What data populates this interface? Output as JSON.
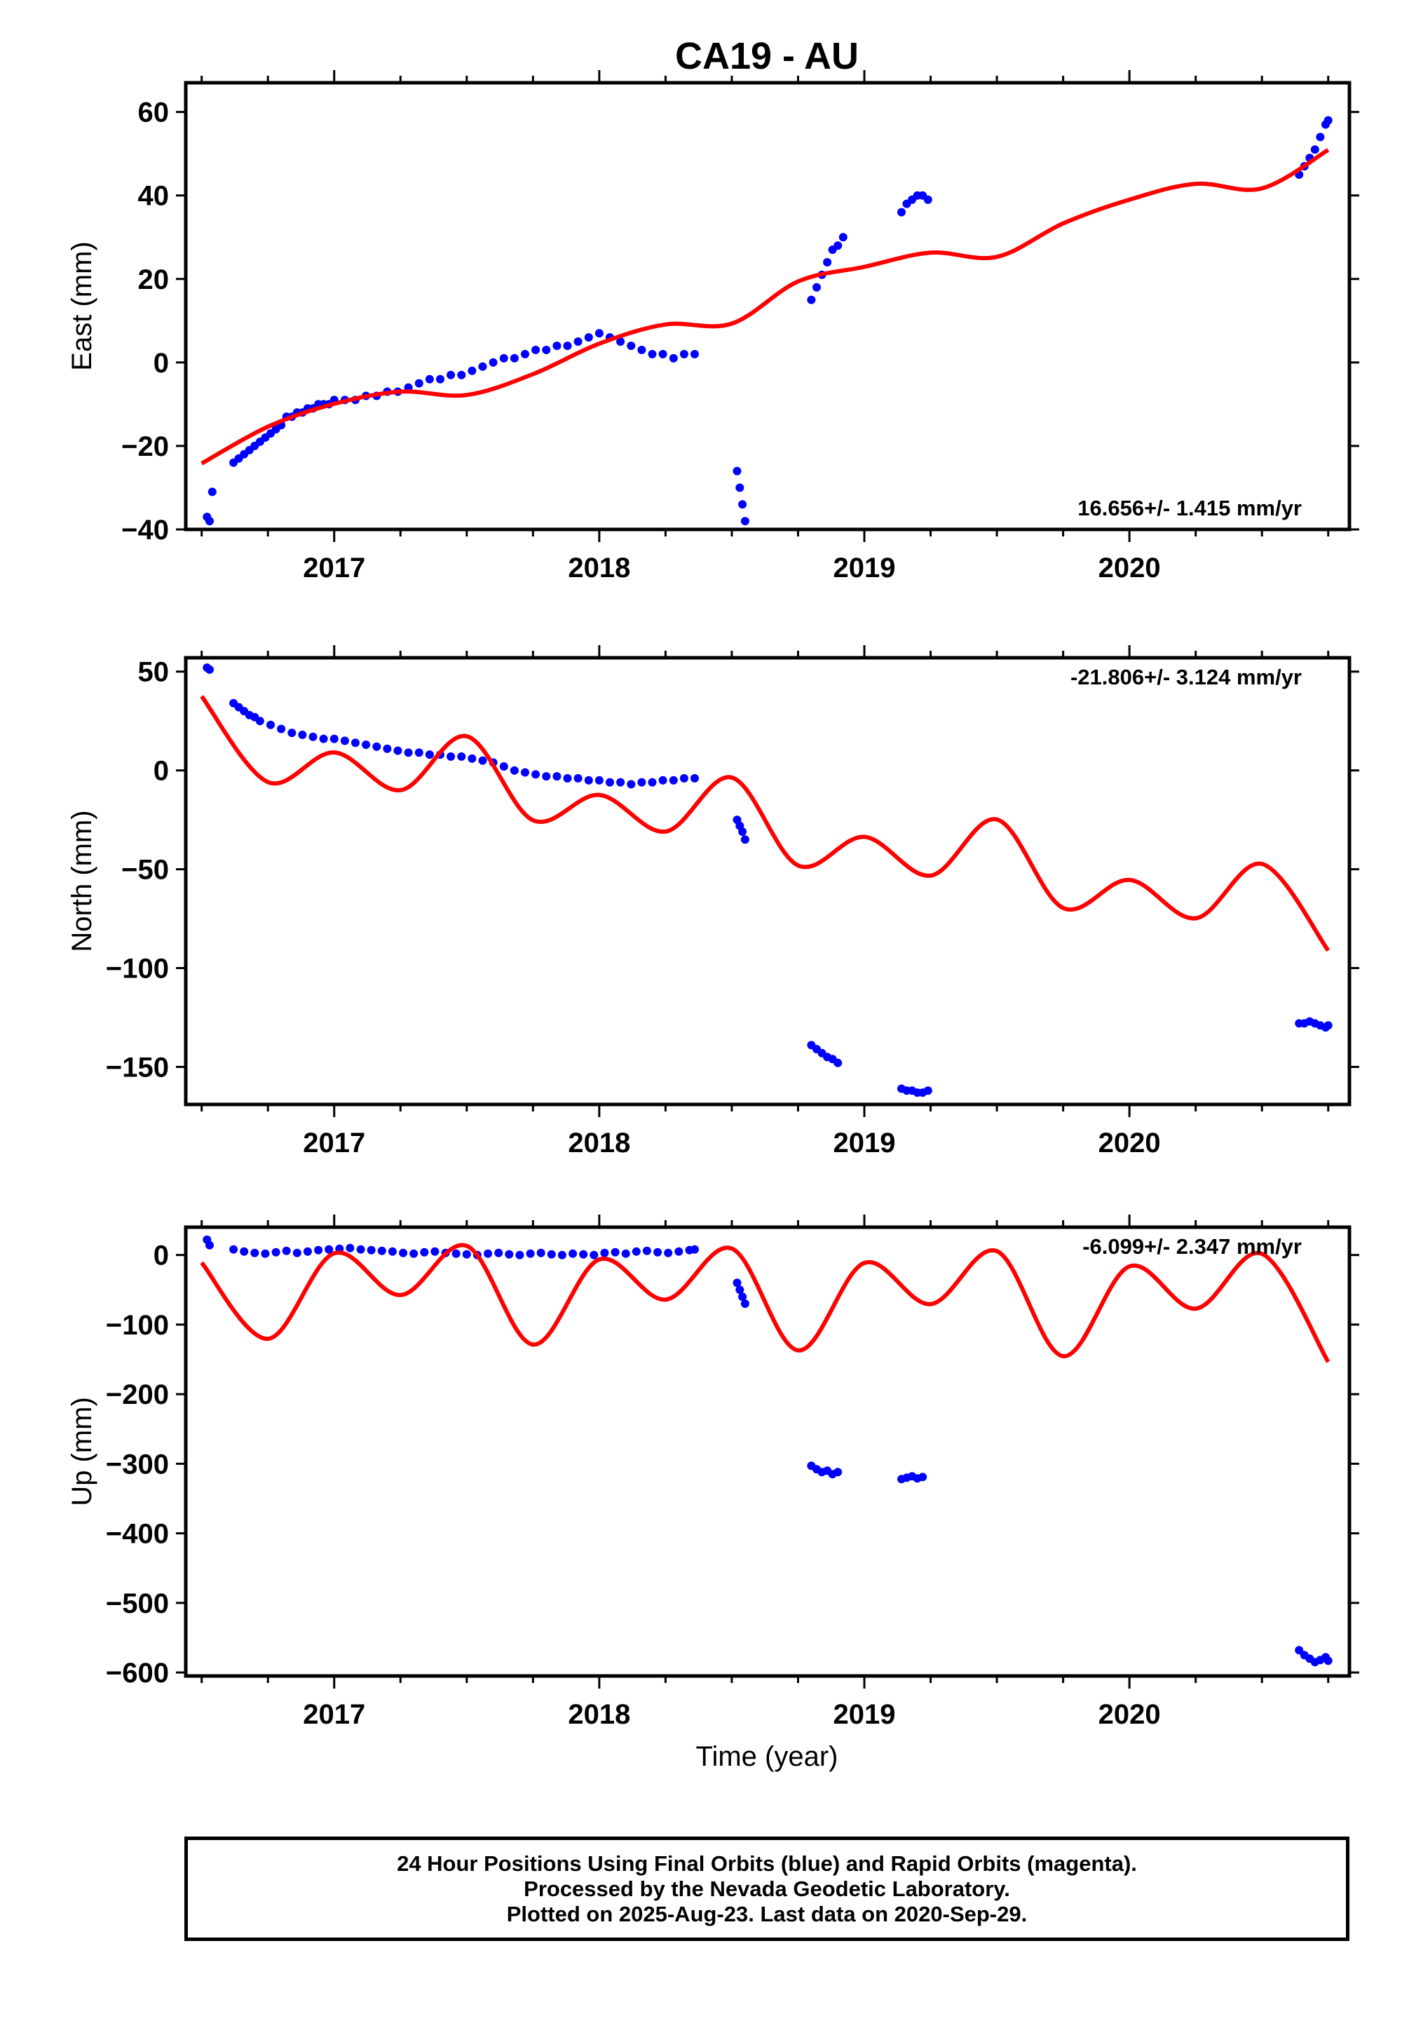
{
  "figure": {
    "title": "CA19 - AU",
    "xlabel": "Time (year)"
  },
  "footer": {
    "line1": "24 Hour Positions Using Final Orbits (blue) and Rapid Orbits (magenta).",
    "line2": "Processed by the Nevada Geodetic Laboratory.",
    "line3": "Plotted on 2025-Aug-23. Last data on 2020-Sep-29."
  },
  "colors": {
    "observations": "#0000ff",
    "model": "#ff0000",
    "axes": "#000000"
  },
  "chart_data": [
    {
      "type": "scatter",
      "title": "CA19 - AU",
      "xlabel": "",
      "ylabel": "East (mm)",
      "xlim": [
        2016.44,
        2020.83
      ],
      "ylim": [
        -40,
        67
      ],
      "yticks": [
        -40,
        -20,
        0,
        20,
        40,
        60
      ],
      "xticks": [
        2017,
        2018,
        2019,
        2020
      ],
      "grid": false,
      "rate_label": "16.656+/- 1.415 mm/yr",
      "rate_position": "bottom-right",
      "series": [
        {
          "kind": "points",
          "color": "#0000ff",
          "x": [
            2016.52,
            2016.53,
            2016.54,
            2016.62,
            2016.64,
            2016.66,
            2016.68,
            2016.7,
            2016.72,
            2016.74,
            2016.76,
            2016.78,
            2016.8,
            2016.82,
            2016.84,
            2016.86,
            2016.88,
            2016.9,
            2016.92,
            2016.94,
            2016.96,
            2016.98,
            2017.0,
            2017.04,
            2017.08,
            2017.12,
            2017.16,
            2017.2,
            2017.24,
            2017.28,
            2017.32,
            2017.36,
            2017.4,
            2017.44,
            2017.48,
            2017.52,
            2017.56,
            2017.6,
            2017.64,
            2017.68,
            2017.72,
            2017.76,
            2017.8,
            2017.84,
            2017.88,
            2017.92,
            2017.96,
            2018.0,
            2018.04,
            2018.08,
            2018.12,
            2018.16,
            2018.2,
            2018.24,
            2018.28,
            2018.32,
            2018.36,
            2018.52,
            2018.53,
            2018.54,
            2018.55,
            2018.8,
            2018.82,
            2018.84,
            2018.86,
            2018.88,
            2018.9,
            2018.92,
            2019.14,
            2019.16,
            2019.18,
            2019.2,
            2019.22,
            2019.24,
            2020.64,
            2020.66,
            2020.68,
            2020.7,
            2020.72,
            2020.74,
            2020.75
          ],
          "y": [
            -37,
            -38,
            -31,
            -24,
            -23,
            -22,
            -21,
            -20,
            -19,
            -18,
            -17,
            -16,
            -15,
            -13,
            -13,
            -12,
            -12,
            -11,
            -11,
            -10,
            -10,
            -10,
            -9,
            -9,
            -9,
            -8,
            -8,
            -7,
            -7,
            -6,
            -5,
            -4,
            -4,
            -3,
            -3,
            -2,
            -1,
            0,
            1,
            1,
            2,
            3,
            3,
            4,
            4,
            5,
            6,
            7,
            6,
            5,
            4,
            3,
            2,
            2,
            1,
            2,
            2,
            -26,
            -30,
            -34,
            -38,
            15,
            18,
            21,
            24,
            27,
            28,
            30,
            36,
            38,
            39,
            40,
            40,
            39,
            45,
            47,
            49,
            51,
            54,
            57,
            58
          ]
        },
        {
          "kind": "line",
          "color": "#ff0000",
          "x": [
            2016.5,
            2016.75,
            2017.0,
            2017.25,
            2017.5,
            2017.75,
            2018.0,
            2018.25,
            2018.5,
            2018.75,
            2019.0,
            2019.25,
            2019.5,
            2019.75,
            2020.0,
            2020.25,
            2020.5,
            2020.75
          ],
          "y": [
            -24.2,
            -15.4,
            -9.9,
            -7.0,
            -7.8,
            -2.8,
            4.5,
            9.1,
            9.3,
            19.4,
            22.9,
            26.3,
            25.3,
            33.3,
            39.0,
            42.8,
            41.7,
            50.9
          ]
        }
      ]
    },
    {
      "type": "scatter",
      "title": "",
      "xlabel": "",
      "ylabel": "North (mm)",
      "xlim": [
        2016.44,
        2020.83
      ],
      "ylim": [
        -169,
        57
      ],
      "yticks": [
        -150,
        -100,
        -50,
        0,
        50
      ],
      "xticks": [
        2017,
        2018,
        2019,
        2020
      ],
      "grid": false,
      "rate_label": "-21.806+/- 3.124 mm/yr",
      "rate_position": "top-right",
      "series": [
        {
          "kind": "points",
          "color": "#0000ff",
          "x": [
            2016.52,
            2016.53,
            2016.62,
            2016.64,
            2016.66,
            2016.68,
            2016.7,
            2016.72,
            2016.76,
            2016.8,
            2016.84,
            2016.88,
            2016.92,
            2016.96,
            2017.0,
            2017.04,
            2017.08,
            2017.12,
            2017.16,
            2017.2,
            2017.24,
            2017.28,
            2017.32,
            2017.36,
            2017.4,
            2017.44,
            2017.48,
            2017.52,
            2017.56,
            2017.6,
            2017.64,
            2017.68,
            2017.72,
            2017.76,
            2017.8,
            2017.84,
            2017.88,
            2017.92,
            2017.96,
            2018.0,
            2018.04,
            2018.08,
            2018.12,
            2018.16,
            2018.2,
            2018.24,
            2018.28,
            2018.32,
            2018.36,
            2018.52,
            2018.53,
            2018.54,
            2018.55,
            2018.8,
            2018.82,
            2018.84,
            2018.86,
            2018.88,
            2018.9,
            2019.14,
            2019.16,
            2019.18,
            2019.2,
            2019.22,
            2019.24,
            2020.64,
            2020.66,
            2020.68,
            2020.7,
            2020.72,
            2020.74,
            2020.75
          ],
          "y": [
            52,
            51,
            34,
            32,
            30,
            28,
            27,
            25,
            23,
            21,
            19,
            18,
            17,
            16,
            16,
            15,
            14,
            13,
            12,
            11,
            10,
            9,
            9,
            8,
            8,
            7,
            7,
            6,
            5,
            4,
            2,
            0,
            -1,
            -2,
            -3,
            -3,
            -4,
            -4,
            -5,
            -5,
            -6,
            -6,
            -7,
            -6,
            -6,
            -5,
            -5,
            -4,
            -4,
            -25,
            -28,
            -31,
            -35,
            -139,
            -141,
            -143,
            -145,
            -146,
            -148,
            -161,
            -162,
            -162,
            -163,
            -163,
            -162,
            -128,
            -128,
            -127,
            -128,
            -129,
            -130,
            -129
          ]
        },
        {
          "kind": "line",
          "color": "#ff0000",
          "x": [
            2016.5,
            2016.75,
            2017.0,
            2017.25,
            2017.5,
            2017.75,
            2018.0,
            2018.25,
            2018.5,
            2018.75,
            2019.0,
            2019.25,
            2019.5,
            2019.75,
            2020.0,
            2020.25,
            2020.5,
            2020.75
          ],
          "y": [
            37.5,
            -5.9,
            9.1,
            -10.0,
            17.3,
            -25.2,
            -12.4,
            -30.9,
            -3.6,
            -48.1,
            -33.6,
            -53.2,
            -24.8,
            -69.6,
            -55.4,
            -74.8,
            -47.3,
            -91.1
          ]
        }
      ]
    },
    {
      "type": "scatter",
      "title": "",
      "xlabel": "Time (year)",
      "ylabel": "Up (mm)",
      "xlim": [
        2016.44,
        2020.83
      ],
      "ylim": [
        -605,
        40
      ],
      "yticks": [
        -600,
        -500,
        -400,
        -300,
        -200,
        -100,
        0
      ],
      "xticks": [
        2017,
        2018,
        2019,
        2020
      ],
      "grid": false,
      "rate_label": "-6.099+/- 2.347 mm/yr",
      "rate_position": "top-right",
      "series": [
        {
          "kind": "points",
          "color": "#0000ff",
          "x": [
            2016.52,
            2016.53,
            2016.62,
            2016.66,
            2016.7,
            2016.74,
            2016.78,
            2016.82,
            2016.86,
            2016.9,
            2016.94,
            2016.98,
            2017.02,
            2017.06,
            2017.1,
            2017.14,
            2017.18,
            2017.22,
            2017.26,
            2017.3,
            2017.34,
            2017.38,
            2017.42,
            2017.46,
            2017.5,
            2017.54,
            2017.58,
            2017.62,
            2017.66,
            2017.7,
            2017.74,
            2017.78,
            2017.82,
            2017.86,
            2017.9,
            2017.94,
            2017.98,
            2018.02,
            2018.06,
            2018.1,
            2018.14,
            2018.18,
            2018.22,
            2018.26,
            2018.3,
            2018.34,
            2018.36,
            2018.52,
            2018.53,
            2018.54,
            2018.55,
            2018.8,
            2018.82,
            2018.84,
            2018.86,
            2018.88,
            2018.9,
            2019.14,
            2019.16,
            2019.18,
            2019.2,
            2019.22,
            2020.64,
            2020.66,
            2020.68,
            2020.7,
            2020.72,
            2020.74,
            2020.75
          ],
          "y": [
            22,
            14,
            8,
            5,
            3,
            2,
            4,
            6,
            3,
            5,
            7,
            8,
            9,
            10,
            8,
            7,
            6,
            5,
            3,
            2,
            4,
            5,
            3,
            2,
            1,
            0,
            2,
            3,
            1,
            0,
            2,
            3,
            1,
            0,
            2,
            1,
            0,
            3,
            4,
            2,
            5,
            6,
            4,
            3,
            5,
            7,
            8,
            -40,
            -50,
            -60,
            -70,
            -303,
            -308,
            -312,
            -310,
            -315,
            -312,
            -322,
            -320,
            -318,
            -321,
            -319,
            -568,
            -575,
            -580,
            -585,
            -582,
            -578,
            -583
          ]
        },
        {
          "kind": "line",
          "color": "#ff0000",
          "x": [
            2016.5,
            2016.75,
            2017.0,
            2017.25,
            2017.5,
            2017.75,
            2018.0,
            2018.25,
            2018.5,
            2018.75,
            2019.0,
            2019.25,
            2019.5,
            2019.75,
            2020.0,
            2020.25,
            2020.5,
            2020.75
          ],
          "y": [
            -11,
            -120.4,
            2.5,
            -57.6,
            13.1,
            -128.7,
            -6.4,
            -64.1,
            9.3,
            -137.1,
            -11.4,
            -70.6,
            5.5,
            -145.4,
            -16.3,
            -77.1,
            1.7,
            -153.7
          ]
        }
      ]
    }
  ]
}
